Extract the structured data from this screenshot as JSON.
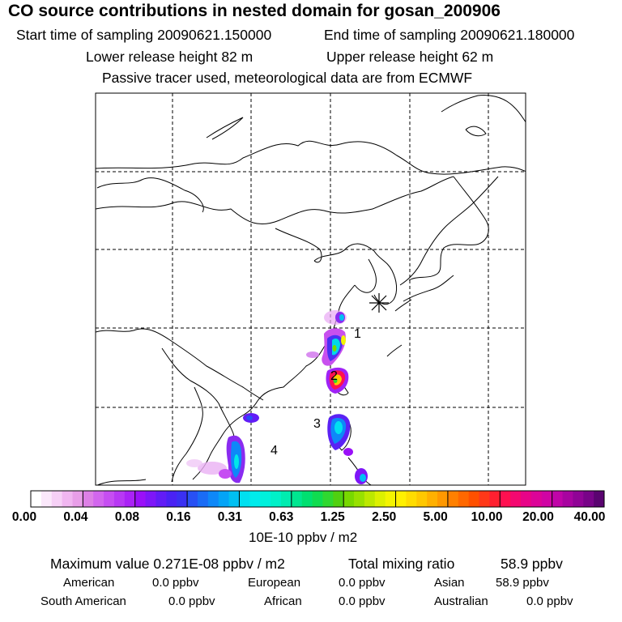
{
  "title": "CO  source contributions in nested domain for gosan_200906",
  "header": {
    "start_label": "Start time of sampling 20090621.150000",
    "end_label": "End time of sampling 20090621.180000",
    "lower_label": "Lower release height   82 m",
    "upper_label": "Upper release height   62 m",
    "tracer_note": "Passive tracer used, meteorological data are from ECMWF"
  },
  "map": {
    "receptor_icon": "asterisk-icon",
    "regions": [
      {
        "label": "1"
      },
      {
        "label": "2"
      },
      {
        "label": "3"
      },
      {
        "label": "4"
      }
    ]
  },
  "colorbar": {
    "ticks": [
      "0.00",
      "0.04",
      "0.08",
      "0.16",
      "0.31",
      "0.63",
      "1.25",
      "2.50",
      "5.00",
      "10.00",
      "20.00",
      "40.00"
    ],
    "unit": "10E-10 ppbv / m2",
    "colors": [
      [
        "#ffffff",
        "#fbe8fb",
        "#f6d0f6",
        "#f0b6f0",
        "#e89ee8"
      ],
      [
        "#dd80e6",
        "#d266ee",
        "#c64ef2",
        "#b838f4",
        "#aa22f6"
      ],
      [
        "#9a10f8",
        "#7e16f8",
        "#621cf6",
        "#4a22f4",
        "#3a30f2"
      ],
      [
        "#2850f4",
        "#1a6cf6",
        "#0e88f8",
        "#04a4f6",
        "#00c0f2"
      ],
      [
        "#00e0f0",
        "#00ecec",
        "#00f0dc",
        "#00f0c8",
        "#00ecb0"
      ],
      [
        "#00e690",
        "#00e070",
        "#10dc50",
        "#30d830",
        "#50d010"
      ],
      [
        "#78d800",
        "#98e000",
        "#bce800",
        "#dcf000",
        "#f4f400"
      ],
      [
        "#fff000",
        "#ffdc00",
        "#ffc800",
        "#ffb000",
        "#ff9800"
      ],
      [
        "#ff8000",
        "#ff6800",
        "#ff5000",
        "#ff3818",
        "#ff2030"
      ],
      [
        "#ff1050",
        "#f40870",
        "#e80488",
        "#dc0498",
        "#d004a4"
      ],
      [
        "#c004a8",
        "#a804a0",
        "#900496",
        "#780488",
        "#5a0470"
      ]
    ]
  },
  "summary": {
    "max_label": "Maximum value  0.271E-08 ppbv / m2",
    "total_label": "Total mixing ratio",
    "total_value": "58.9 ppbv",
    "rows": [
      [
        {
          "name": "American",
          "value": "0.0 ppbv"
        },
        {
          "name": "European",
          "value": "0.0 ppbv"
        },
        {
          "name": "Asian",
          "value": "58.9 ppbv"
        }
      ],
      [
        {
          "name": "South American",
          "value": "0.0 ppbv"
        },
        {
          "name": "African",
          "value": "0.0 ppbv"
        },
        {
          "name": "Australian",
          "value": "0.0 ppbv"
        }
      ]
    ]
  }
}
